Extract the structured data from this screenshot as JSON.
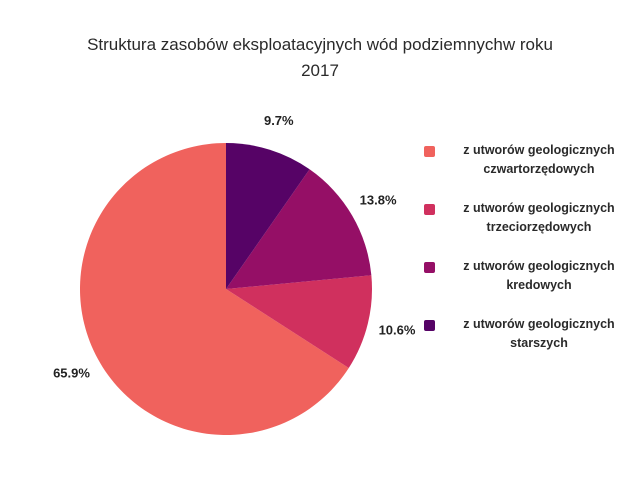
{
  "chart_data": {
    "type": "pie",
    "title_lines": [
      "Struktura zasobów eksploatacyjnych wód podziemnychw roku",
      "2017"
    ],
    "slices": [
      {
        "label_lines": [
          "z utworów geologicznych",
          "czwartorzędowych"
        ],
        "value": 65.9,
        "value_label": "65.9%",
        "color": "#f0625d"
      },
      {
        "label_lines": [
          "z utworów geologicznych",
          "trzeciorzędowych"
        ],
        "value": 10.6,
        "value_label": "10.6%",
        "color": "#d0305e"
      },
      {
        "label_lines": [
          "z utworów geologicznych",
          "kredowych"
        ],
        "value": 13.8,
        "value_label": "13.8%",
        "color": "#950f66"
      },
      {
        "label_lines": [
          "z utworów geologicznych",
          "starszych"
        ],
        "value": 9.7,
        "value_label": "9.7%",
        "color": "#560366"
      }
    ],
    "start": "12 o'clock",
    "direction": "counterclockwise",
    "legend_position": "right"
  }
}
